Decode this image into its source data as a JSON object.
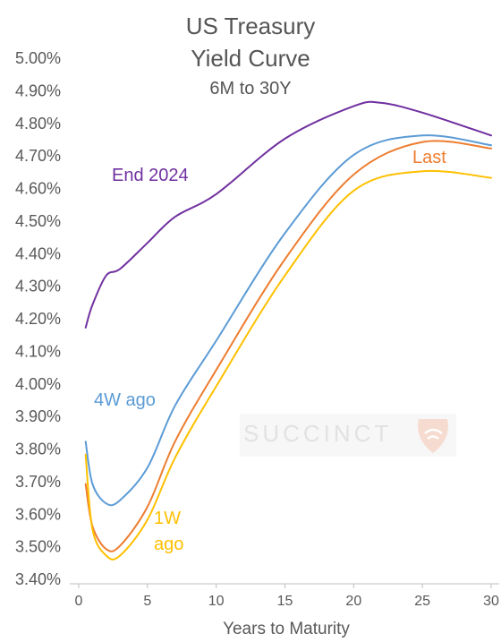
{
  "chart_data": {
    "type": "line",
    "title_lines": [
      "US Treasury",
      "Yield Curve"
    ],
    "subtitle": "6M to 30Y",
    "xlabel": "Years to Maturity",
    "ylabel": "",
    "xlim": [
      0,
      30
    ],
    "ylim": [
      3.4,
      5.0
    ],
    "x_ticks": [
      0,
      5,
      10,
      15,
      20,
      25,
      30
    ],
    "x_tick_labels": [
      "0",
      "5",
      "10",
      "15",
      "20",
      "25",
      "30"
    ],
    "y_ticks": [
      3.4,
      3.5,
      3.6,
      3.7,
      3.8,
      3.9,
      4.0,
      4.1,
      4.2,
      4.3,
      4.4,
      4.5,
      4.6,
      4.7,
      4.8,
      4.9,
      5.0
    ],
    "y_tick_labels": [
      "3.40%",
      "3.50%",
      "3.60%",
      "3.70%",
      "3.80%",
      "3.90%",
      "4.00%",
      "4.10%",
      "4.20%",
      "4.30%",
      "4.40%",
      "4.50%",
      "4.60%",
      "4.70%",
      "4.80%",
      "4.90%",
      "5.00%"
    ],
    "grid": false,
    "series": [
      {
        "name": "End 2024",
        "color": "#7030a0",
        "points": [
          [
            0.5,
            4.17
          ],
          [
            1,
            4.24
          ],
          [
            2,
            4.33
          ],
          [
            3,
            4.35
          ],
          [
            5,
            4.43
          ],
          [
            7,
            4.51
          ],
          [
            10,
            4.58
          ],
          [
            15,
            4.75
          ],
          [
            20,
            4.85
          ],
          [
            22,
            4.86
          ],
          [
            25,
            4.83
          ],
          [
            30,
            4.76
          ]
        ]
      },
      {
        "name": "4W ago",
        "color": "#5b9bd5",
        "points": [
          [
            0.5,
            3.82
          ],
          [
            1,
            3.69
          ],
          [
            2,
            3.63
          ],
          [
            3,
            3.64
          ],
          [
            5,
            3.74
          ],
          [
            7,
            3.93
          ],
          [
            10,
            4.13
          ],
          [
            15,
            4.46
          ],
          [
            20,
            4.7
          ],
          [
            25,
            4.76
          ],
          [
            30,
            4.73
          ]
        ]
      },
      {
        "name": "Last",
        "color": "#ed7d31",
        "points": [
          [
            0.5,
            3.69
          ],
          [
            1,
            3.56
          ],
          [
            2,
            3.49
          ],
          [
            3,
            3.5
          ],
          [
            5,
            3.62
          ],
          [
            7,
            3.82
          ],
          [
            10,
            4.04
          ],
          [
            15,
            4.38
          ],
          [
            20,
            4.64
          ],
          [
            25,
            4.74
          ],
          [
            30,
            4.72
          ]
        ]
      },
      {
        "name": "1W ago",
        "color": "#ffc000",
        "points": [
          [
            0.5,
            3.78
          ],
          [
            1,
            3.55
          ],
          [
            2,
            3.47
          ],
          [
            3,
            3.47
          ],
          [
            5,
            3.58
          ],
          [
            7,
            3.77
          ],
          [
            10,
            3.99
          ],
          [
            15,
            4.33
          ],
          [
            20,
            4.59
          ],
          [
            25,
            4.65
          ],
          [
            30,
            4.63
          ]
        ]
      }
    ],
    "annotations": [
      {
        "series": "End 2024",
        "text": "End 2024"
      },
      {
        "series": "4W ago",
        "text": "4W ago"
      },
      {
        "series": "Last",
        "text": "Last"
      },
      {
        "series": "1W ago",
        "text_lines": [
          "1W",
          "ago"
        ]
      }
    ]
  },
  "watermark": {
    "text": "SUCCINCT"
  }
}
